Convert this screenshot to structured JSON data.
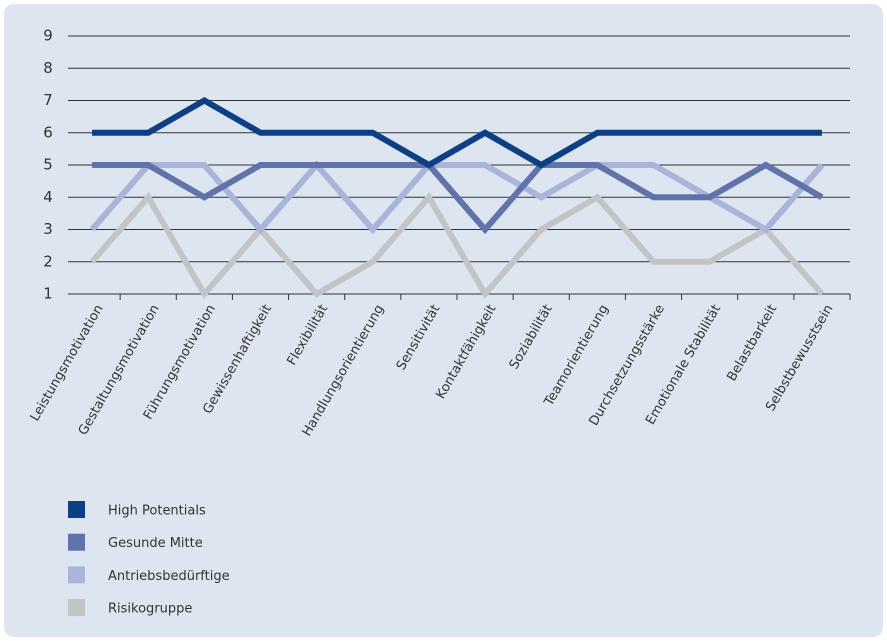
{
  "chart_data": {
    "type": "line",
    "categories": [
      "Leistungsmotivation",
      "Gestaltungsmotivation",
      "Führungsmotivation",
      "Gewissenhaftigkeit",
      "Flexibilität",
      "Handlungsorientierung",
      "Sensitivität",
      "Kontaktfähigkeit",
      "Soziabilität",
      "Teamorientierung",
      "Durchsetzungsstärke",
      "Emotionale Stabilität",
      "Belastbarkeit",
      "Selbstbewusstsein"
    ],
    "series": [
      {
        "name": "High Potentials",
        "color": "#0d3f85",
        "values": [
          6,
          6,
          7,
          6,
          6,
          6,
          5,
          6,
          5,
          6,
          6,
          6,
          6,
          6
        ]
      },
      {
        "name": "Gesunde Mitte",
        "color": "#6272aa",
        "values": [
          5,
          5,
          4,
          5,
          5,
          5,
          5,
          3,
          5,
          5,
          4,
          4,
          5,
          4
        ]
      },
      {
        "name": "Antriebsbedürftige",
        "color": "#a9b4d8",
        "values": [
          3,
          5,
          5,
          3,
          5,
          3,
          5,
          5,
          4,
          5,
          5,
          4,
          3,
          5
        ]
      },
      {
        "name": "Risikogruppe",
        "color": "#c3c4c6",
        "values": [
          2,
          4,
          1,
          3,
          1,
          2,
          4,
          1,
          3,
          4,
          2,
          2,
          3,
          1
        ]
      }
    ],
    "ylim": [
      1,
      9
    ],
    "yticks": [
      1,
      2,
      3,
      4,
      5,
      6,
      7,
      8,
      9
    ],
    "grid": true
  }
}
